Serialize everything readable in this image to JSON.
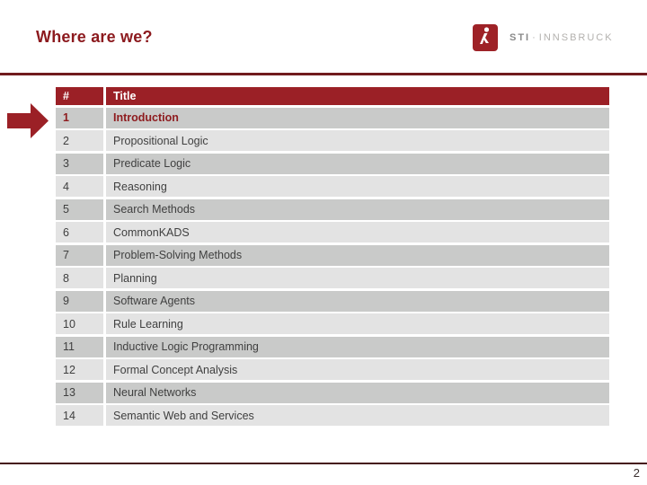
{
  "slide": {
    "title": "Where are we?",
    "page_number": "2"
  },
  "logo": {
    "brand": "STI",
    "separator": "·",
    "location": "INNSBRUCK",
    "figure_icon": "sti-dancer-icon"
  },
  "colors": {
    "accent_red": "#9b2026",
    "title_red": "#8c1a1e",
    "highlight_red": "#8e1b1e",
    "rule_top": "#701b1e",
    "rule_bottom": "#451518",
    "row_dark": "#c9cac9",
    "row_light": "#e3e3e3",
    "header_text": "#ffffff",
    "body_text": "#404040"
  },
  "table": {
    "columns": [
      "#",
      "Title"
    ],
    "rows": [
      {
        "num": "1",
        "title": "Introduction",
        "highlighted": true
      },
      {
        "num": "2",
        "title": "Propositional Logic",
        "highlighted": false
      },
      {
        "num": "3",
        "title": "Predicate Logic",
        "highlighted": false
      },
      {
        "num": "4",
        "title": "Reasoning",
        "highlighted": false
      },
      {
        "num": "5",
        "title": "Search Methods",
        "highlighted": false
      },
      {
        "num": "6",
        "title": "CommonKADS",
        "highlighted": false
      },
      {
        "num": "7",
        "title": "Problem-Solving Methods",
        "highlighted": false
      },
      {
        "num": "8",
        "title": "Planning",
        "highlighted": false
      },
      {
        "num": "9",
        "title": "Software Agents",
        "highlighted": false
      },
      {
        "num": "10",
        "title": "Rule Learning",
        "highlighted": false
      },
      {
        "num": "11",
        "title": "Inductive Logic Programming",
        "highlighted": false
      },
      {
        "num": "12",
        "title": "Formal Concept Analysis",
        "highlighted": false
      },
      {
        "num": "13",
        "title": "Neural Networks",
        "highlighted": false
      },
      {
        "num": "14",
        "title": "Semantic Web and Services",
        "highlighted": false
      }
    ]
  }
}
